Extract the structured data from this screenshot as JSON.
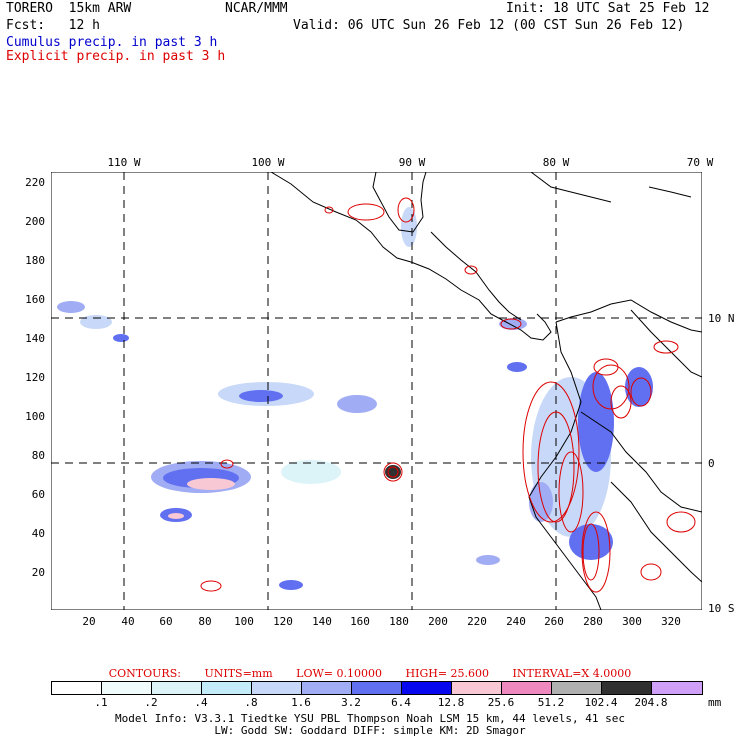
{
  "header": {
    "model_name": "TORERO  15km ARW",
    "org": "NCAR/MMM",
    "init": "Init: 18 UTC Sat 25 Feb 12",
    "fcst": "Fcst:   12 h",
    "valid": "Valid: 06 UTC Sun 26 Feb 12 (00 CST Sun 26 Feb 12)",
    "field1": "Cumulus precip. in past 3 h",
    "field2": "Explicit precip. in past 3 h"
  },
  "map": {
    "top_lon_labels": [
      "110 W",
      "100 W",
      "90 W",
      "80 W",
      "70 W"
    ],
    "right_lat_labels": [
      "10 N",
      "0",
      "10 S"
    ],
    "y_ticks": [
      "220",
      "200",
      "180",
      "160",
      "140",
      "120",
      "100",
      "80",
      "60",
      "40",
      "20"
    ],
    "x_ticks": [
      "20",
      "40",
      "60",
      "80",
      "100",
      "120",
      "140",
      "160",
      "180",
      "200",
      "220",
      "240",
      "260",
      "280",
      "300",
      "320"
    ],
    "colors": {
      "land_line": "#000000",
      "contour": "#dd0000",
      "grid": "#000000"
    }
  },
  "contours": {
    "title": "CONTOURS:",
    "units": "UNITS=mm",
    "low": "LOW= 0.10000",
    "high": "HIGH=  25.600",
    "interval": "INTERVAL=X  4.0000"
  },
  "legend": {
    "labels": [
      ".1",
      ".2",
      ".4",
      ".8",
      "1.6",
      "3.2",
      "6.4",
      "12.8",
      "25.6",
      "51.2",
      "102.4",
      "204.8"
    ],
    "unit": "mm",
    "colors": [
      "#ffffff",
      "#f0fcfc",
      "#dcf4f8",
      "#c4ecf8",
      "#c8d8f8",
      "#a0acf4",
      "#6070f0",
      "#0808f0",
      "#f8c8d4",
      "#f088c0",
      "#b0b0b0",
      "#303030",
      "#d0a0f8"
    ]
  },
  "footer": {
    "line1": "Model Info: V3.3.1   Tiedtke YSU PBL  Thompson    Noah LSM  15 km,   44 levels,   41 sec",
    "line2": "LW: Godd SW: Goddard DIFF: simple KM: 2D Smagor"
  }
}
